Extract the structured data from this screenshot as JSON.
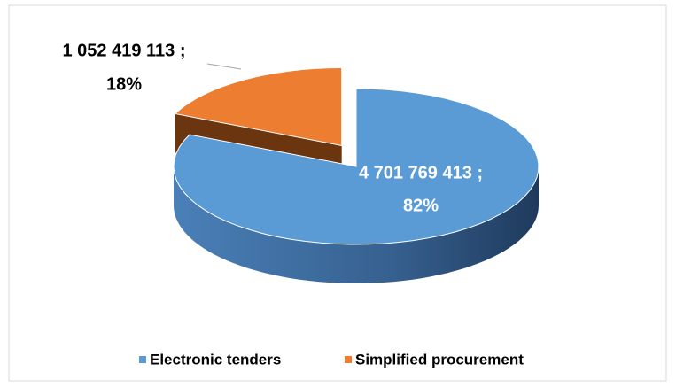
{
  "chart_data": {
    "type": "pie3d",
    "categories": [
      "Electronic tenders",
      "Simplified procurement"
    ],
    "values": [
      4701769413,
      1052419113
    ],
    "value_labels": [
      "4 701 769 413 ;",
      "1 052 419 113 ;"
    ],
    "percents": [
      82,
      18
    ],
    "percent_labels": [
      "82%",
      "18%"
    ],
    "colors": [
      "#5b9bd5",
      "#ed7d31"
    ],
    "legend": "bottom"
  }
}
